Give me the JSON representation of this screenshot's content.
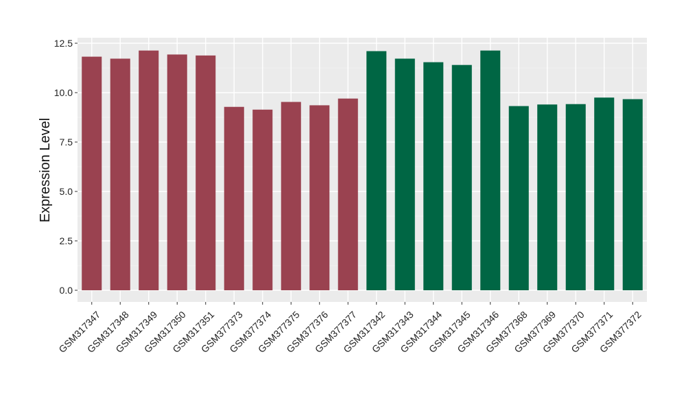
{
  "chart_data": {
    "type": "bar",
    "title": "",
    "xlabel": "",
    "ylabel": "Expression Level",
    "ylim": [
      -0.6,
      12.5
    ],
    "yticks": [
      0.0,
      2.5,
      5.0,
      7.5,
      10.0,
      12.5
    ],
    "ytick_labels": [
      "0.0",
      "2.5",
      "5.0",
      "7.5",
      "10.0",
      "12.5"
    ],
    "grid": true,
    "legend": "none",
    "panel_background": "#ebebeb",
    "categories": [
      "GSM317347",
      "GSM317348",
      "GSM317349",
      "GSM317350",
      "GSM317351",
      "GSM377373",
      "GSM377374",
      "GSM377375",
      "GSM377376",
      "GSM377377",
      "GSM317342",
      "GSM317343",
      "GSM317344",
      "GSM317345",
      "GSM317346",
      "GSM377368",
      "GSM377369",
      "GSM377370",
      "GSM377371",
      "GSM377372"
    ],
    "values": [
      11.82,
      11.72,
      12.13,
      11.93,
      11.88,
      9.28,
      9.14,
      9.53,
      9.36,
      9.7,
      12.1,
      11.72,
      11.54,
      11.4,
      12.13,
      9.32,
      9.4,
      9.42,
      9.75,
      9.67
    ],
    "colors": [
      "#9a4250",
      "#9a4250",
      "#9a4250",
      "#9a4250",
      "#9a4250",
      "#9a4250",
      "#9a4250",
      "#9a4250",
      "#9a4250",
      "#9a4250",
      "#006644",
      "#006644",
      "#006644",
      "#006644",
      "#006644",
      "#006644",
      "#006644",
      "#006644",
      "#006644",
      "#006644"
    ]
  }
}
